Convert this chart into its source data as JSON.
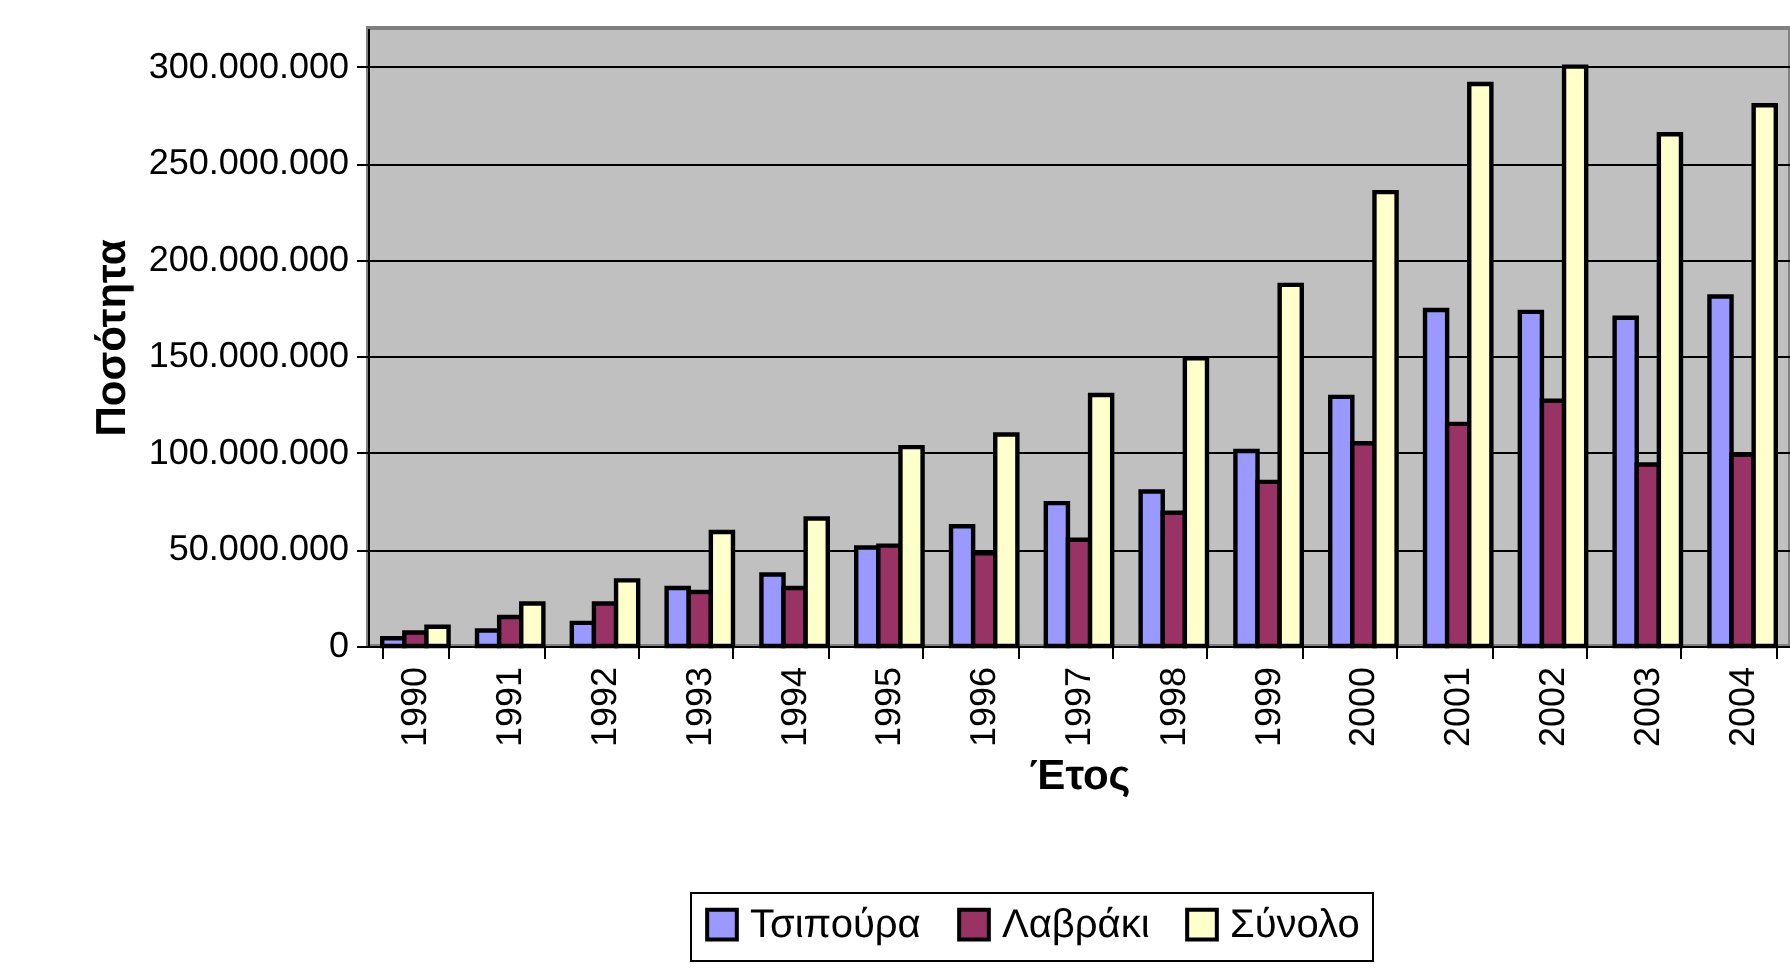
{
  "chart_data": {
    "type": "bar",
    "xlabel": "Έτος",
    "ylabel": "Ποσότητα",
    "categories": [
      "1990",
      "1991",
      "1992",
      "1993",
      "1994",
      "1995",
      "1996",
      "1997",
      "1998",
      "1999",
      "2000",
      "2001",
      "2002",
      "2003",
      "2004"
    ],
    "series": [
      {
        "name": "Τσιπούρα",
        "color": "#9999ff",
        "values": [
          4000000,
          8000000,
          12000000,
          30000000,
          37000000,
          51000000,
          62000000,
          74000000,
          80000000,
          101000000,
          129000000,
          174000000,
          173000000,
          170000000,
          181000000
        ]
      },
      {
        "name": "Λαβράκι",
        "color": "#993366",
        "values": [
          7000000,
          15000000,
          22000000,
          28000000,
          30000000,
          52000000,
          48000000,
          55000000,
          69000000,
          85000000,
          105000000,
          115000000,
          127000000,
          94000000,
          99000000
        ]
      },
      {
        "name": "Σύνολο",
        "color": "#ffffcc",
        "values": [
          10000000,
          22000000,
          34000000,
          59000000,
          66000000,
          103000000,
          109500000,
          130000000,
          149000000,
          187000000,
          235000000,
          291000000,
          300000000,
          265000000,
          280000000
        ]
      }
    ],
    "ylim": [
      0,
      320000000
    ],
    "yticks": [
      {
        "value": 0,
        "label": "0"
      },
      {
        "value": 50000000,
        "label": "50.000.000"
      },
      {
        "value": 100000000,
        "label": "100.000.000"
      },
      {
        "value": 150000000,
        "label": "150.000.000"
      },
      {
        "value": 200000000,
        "label": "200.000.000"
      },
      {
        "value": 250000000,
        "label": "250.000.000"
      },
      {
        "value": 300000000,
        "label": "300.000.000"
      }
    ],
    "grid": "y",
    "legend": "bottom"
  }
}
